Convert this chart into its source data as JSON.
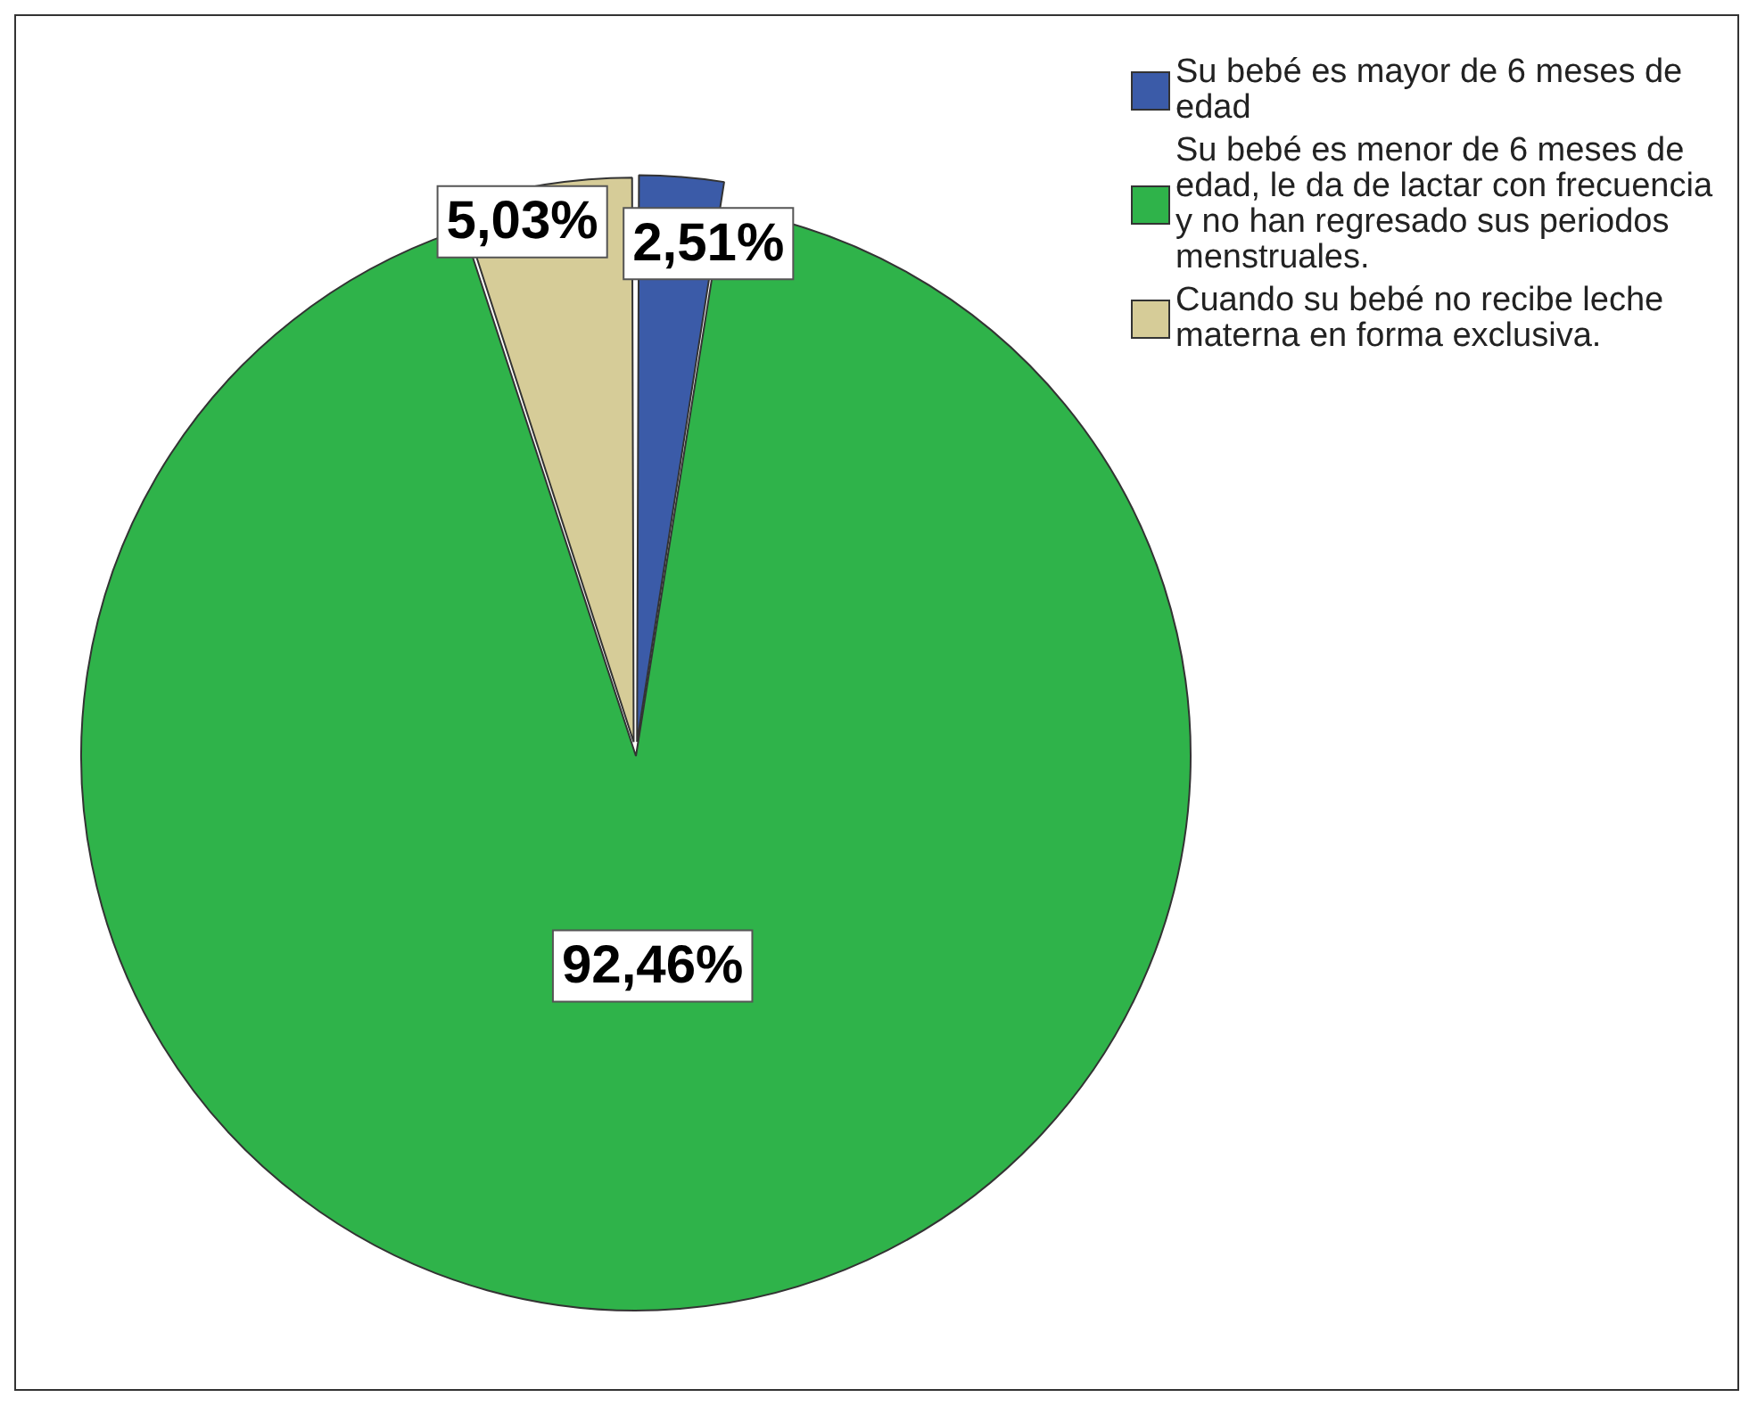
{
  "chart_data": {
    "type": "pie",
    "categories": [
      "Su bebé es mayor de 6 meses de edad",
      "Su bebé es menor de 6 meses de edad, le da de lactar con frecuencia y no han regresado sus periodos menstruales.",
      "Cuando su bebé no recibe leche materna en forma exclusiva."
    ],
    "values": [
      2.51,
      92.46,
      5.03
    ],
    "colors": [
      "#3b5ba8",
      "#2fb34a",
      "#d6cc98"
    ],
    "value_labels": [
      "2,51%",
      "92,46%",
      "5,03%"
    ],
    "legend": "top right"
  }
}
